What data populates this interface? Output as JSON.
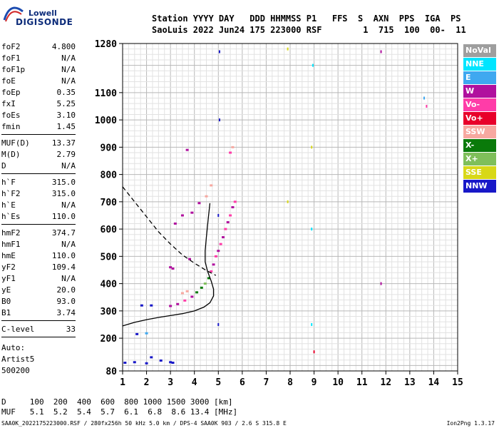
{
  "logo": {
    "line1": "Lowell",
    "line2": "DIGISONDE"
  },
  "header": {
    "line1": "Station YYYY DAY   DDD HHMMSS P1   FFS  S  AXN  PPS  IGA  PS",
    "line2": "SaoLuis 2022 Jun24 175 223000 RSF        1  715  100  00-  11"
  },
  "params": {
    "group1": [
      {
        "name": "foF2",
        "value": "4.800"
      },
      {
        "name": "foF1",
        "value": "N/A"
      },
      {
        "name": "foF1p",
        "value": "N/A"
      },
      {
        "name": "foE",
        "value": "N/A"
      },
      {
        "name": "foEp",
        "value": "0.35"
      },
      {
        "name": "fxI",
        "value": "5.25"
      },
      {
        "name": "foEs",
        "value": "3.10"
      },
      {
        "name": "fmin",
        "value": "1.45"
      }
    ],
    "group2": [
      {
        "name": "MUF(D)",
        "value": "13.37"
      },
      {
        "name": "M(D)",
        "value": "2.79"
      },
      {
        "name": "D",
        "value": "N/A"
      }
    ],
    "group3": [
      {
        "name": "h`F",
        "value": "315.0"
      },
      {
        "name": "h`F2",
        "value": "315.0"
      },
      {
        "name": "h`E",
        "value": "N/A"
      },
      {
        "name": "h`Es",
        "value": "110.0"
      }
    ],
    "group4": [
      {
        "name": "hmF2",
        "value": "374.7"
      },
      {
        "name": "hmF1",
        "value": "N/A"
      },
      {
        "name": "hmE",
        "value": "110.0"
      },
      {
        "name": "yF2",
        "value": "109.4"
      },
      {
        "name": "yF1",
        "value": "N/A"
      },
      {
        "name": "yE",
        "value": "20.0"
      },
      {
        "name": "B0",
        "value": "93.0"
      },
      {
        "name": "B1",
        "value": "3.74"
      }
    ],
    "group5": [
      {
        "name": "C-level",
        "value": "33"
      }
    ]
  },
  "auto": {
    "line1": "Auto:",
    "line2": "Artist5",
    "line3": "500200"
  },
  "legend": [
    {
      "label": "NoVal",
      "color": "#9e9e9e"
    },
    {
      "label": "NNE",
      "color": "#00e5ff"
    },
    {
      "label": "E",
      "color": "#3fa8f0"
    },
    {
      "label": "W",
      "color": "#b0109e"
    },
    {
      "label": "Vo-",
      "color": "#ff3ca8"
    },
    {
      "label": "Vo+",
      "color": "#e8002a"
    },
    {
      "label": "SSW",
      "color": "#f7a8a0"
    },
    {
      "label": "X-",
      "color": "#0a7a0a"
    },
    {
      "label": "X+",
      "color": "#7fbf5a"
    },
    {
      "label": "SSE",
      "color": "#d8d818"
    },
    {
      "label": "NNW",
      "color": "#1818c8"
    }
  ],
  "table": {
    "line1": "D     100  200  400  600  800 1000 1500 3000 [km]",
    "line2": "MUF   5.1  5.2  5.4  5.7  6.1  6.8  8.6 13.4 [MHz]"
  },
  "footer": {
    "left": "SAA0K_2022175223000.RSF / 280fx256h 50 kHz 5.0 km / DPS-4 SAA0K 903 / 2.6 S 315.8 E",
    "right": "Ion2Png 1.3.17"
  },
  "chart_data": {
    "type": "scatter",
    "title": "",
    "xlabel": "",
    "ylabel": "",
    "xlim": [
      1,
      15
    ],
    "ylim": [
      80,
      1280
    ],
    "x_ticks": [
      1,
      2,
      3,
      4,
      5,
      6,
      7,
      8,
      9,
      10,
      11,
      12,
      13,
      14,
      15
    ],
    "y_ticks": [
      80,
      200,
      300,
      400,
      500,
      600,
      700,
      800,
      900,
      1000,
      1100,
      1280
    ],
    "grid": true,
    "legend_position": "right",
    "series": [
      {
        "legend": "profile",
        "style": "solid",
        "color": "#000000",
        "points": [
          [
            1,
            245
          ],
          [
            1.5,
            258
          ],
          [
            2,
            268
          ],
          [
            2.5,
            276
          ],
          [
            3,
            283
          ],
          [
            3.5,
            290
          ],
          [
            4,
            300
          ],
          [
            4.4,
            314
          ],
          [
            4.65,
            330
          ],
          [
            4.8,
            355
          ],
          [
            4.8,
            380
          ],
          [
            4.7,
            410
          ],
          [
            4.55,
            445
          ],
          [
            4.45,
            480
          ],
          [
            4.45,
            520
          ],
          [
            4.5,
            570
          ],
          [
            4.58,
            640
          ],
          [
            4.65,
            695
          ]
        ]
      },
      {
        "legend": "MUF",
        "style": "dashed",
        "color": "#000000",
        "points": [
          [
            1,
            755
          ],
          [
            1.5,
            700
          ],
          [
            2,
            645
          ],
          [
            2.5,
            590
          ],
          [
            3,
            545
          ],
          [
            3.5,
            505
          ],
          [
            4,
            475
          ],
          [
            4.5,
            448
          ],
          [
            4.9,
            430
          ]
        ]
      },
      {
        "legend": "E/Es echoes",
        "style": "points",
        "points": [
          {
            "x": 1.1,
            "y": 110,
            "c": "NNW"
          },
          {
            "x": 1.5,
            "y": 112,
            "c": "NNW"
          },
          {
            "x": 2.0,
            "y": 108,
            "c": "NNW"
          },
          {
            "x": 2.2,
            "y": 130,
            "c": "NNW"
          },
          {
            "x": 2.6,
            "y": 118,
            "c": "NNW"
          },
          {
            "x": 3.0,
            "y": 112,
            "c": "NNW"
          },
          {
            "x": 3.1,
            "y": 110,
            "c": "NNW"
          },
          {
            "x": 1.6,
            "y": 215,
            "c": "NNW"
          },
          {
            "x": 2.0,
            "y": 218,
            "c": "E"
          },
          {
            "x": 2.2,
            "y": 320,
            "c": "NNW"
          },
          {
            "x": 1.8,
            "y": 320,
            "c": "NNW"
          }
        ]
      },
      {
        "legend": "F-region echoes",
        "style": "points",
        "points": [
          {
            "x": 3.0,
            "y": 318,
            "c": "W"
          },
          {
            "x": 3.3,
            "y": 325,
            "c": "W"
          },
          {
            "x": 3.6,
            "y": 338,
            "c": "Vo-"
          },
          {
            "x": 3.9,
            "y": 352,
            "c": "W"
          },
          {
            "x": 4.1,
            "y": 368,
            "c": "X-"
          },
          {
            "x": 4.3,
            "y": 385,
            "c": "X-"
          },
          {
            "x": 4.45,
            "y": 400,
            "c": "X+"
          },
          {
            "x": 4.6,
            "y": 420,
            "c": "X-"
          },
          {
            "x": 4.7,
            "y": 445,
            "c": "Vo-"
          },
          {
            "x": 4.8,
            "y": 470,
            "c": "W"
          },
          {
            "x": 4.9,
            "y": 500,
            "c": "Vo-"
          },
          {
            "x": 5.0,
            "y": 520,
            "c": "W"
          },
          {
            "x": 5.1,
            "y": 545,
            "c": "Vo-"
          },
          {
            "x": 5.2,
            "y": 570,
            "c": "W"
          },
          {
            "x": 5.3,
            "y": 600,
            "c": "Vo-"
          },
          {
            "x": 5.4,
            "y": 625,
            "c": "W"
          },
          {
            "x": 5.5,
            "y": 650,
            "c": "Vo-"
          },
          {
            "x": 5.6,
            "y": 680,
            "c": "W"
          },
          {
            "x": 5.7,
            "y": 700,
            "c": "Vo-"
          },
          {
            "x": 3.5,
            "y": 365,
            "c": "SSW"
          },
          {
            "x": 3.7,
            "y": 372,
            "c": "SSW"
          },
          {
            "x": 3.0,
            "y": 460,
            "c": "W"
          },
          {
            "x": 3.1,
            "y": 455,
            "c": "W"
          },
          {
            "x": 3.8,
            "y": 490,
            "c": "W"
          }
        ]
      },
      {
        "legend": "multi-hop echoes",
        "style": "points",
        "points": [
          {
            "x": 3.2,
            "y": 620,
            "c": "W"
          },
          {
            "x": 3.5,
            "y": 650,
            "c": "W"
          },
          {
            "x": 3.9,
            "y": 660,
            "c": "W"
          },
          {
            "x": 4.2,
            "y": 695,
            "c": "W"
          },
          {
            "x": 4.5,
            "y": 720,
            "c": "SSW"
          },
          {
            "x": 4.7,
            "y": 760,
            "c": "SSW"
          },
          {
            "x": 3.7,
            "y": 890,
            "c": "W"
          },
          {
            "x": 5.5,
            "y": 880,
            "c": "Vo-"
          },
          {
            "x": 5.6,
            "y": 900,
            "c": "SSW"
          }
        ]
      },
      {
        "legend": "interference lines",
        "style": "vertical-points",
        "points": [
          {
            "x": 5.0,
            "y": 250,
            "c": "NNW"
          },
          {
            "x": 5.0,
            "y": 650,
            "c": "NNW"
          },
          {
            "x": 5.05,
            "y": 1000,
            "c": "NNW"
          },
          {
            "x": 5.05,
            "y": 1250,
            "c": "NNW"
          },
          {
            "x": 7.9,
            "y": 700,
            "c": "SSE"
          },
          {
            "x": 7.9,
            "y": 1260,
            "c": "SSE"
          },
          {
            "x": 8.9,
            "y": 250,
            "c": "NNE"
          },
          {
            "x": 8.9,
            "y": 600,
            "c": "NNE"
          },
          {
            "x": 8.9,
            "y": 900,
            "c": "SSE"
          },
          {
            "x": 8.95,
            "y": 1200,
            "c": "NNE"
          },
          {
            "x": 9.0,
            "y": 150,
            "c": "Vo+"
          },
          {
            "x": 11.8,
            "y": 1250,
            "c": "W"
          },
          {
            "x": 11.8,
            "y": 400,
            "c": "W"
          },
          {
            "x": 13.7,
            "y": 1050,
            "c": "Vo-"
          },
          {
            "x": 13.6,
            "y": 1080,
            "c": "E"
          }
        ]
      }
    ]
  }
}
